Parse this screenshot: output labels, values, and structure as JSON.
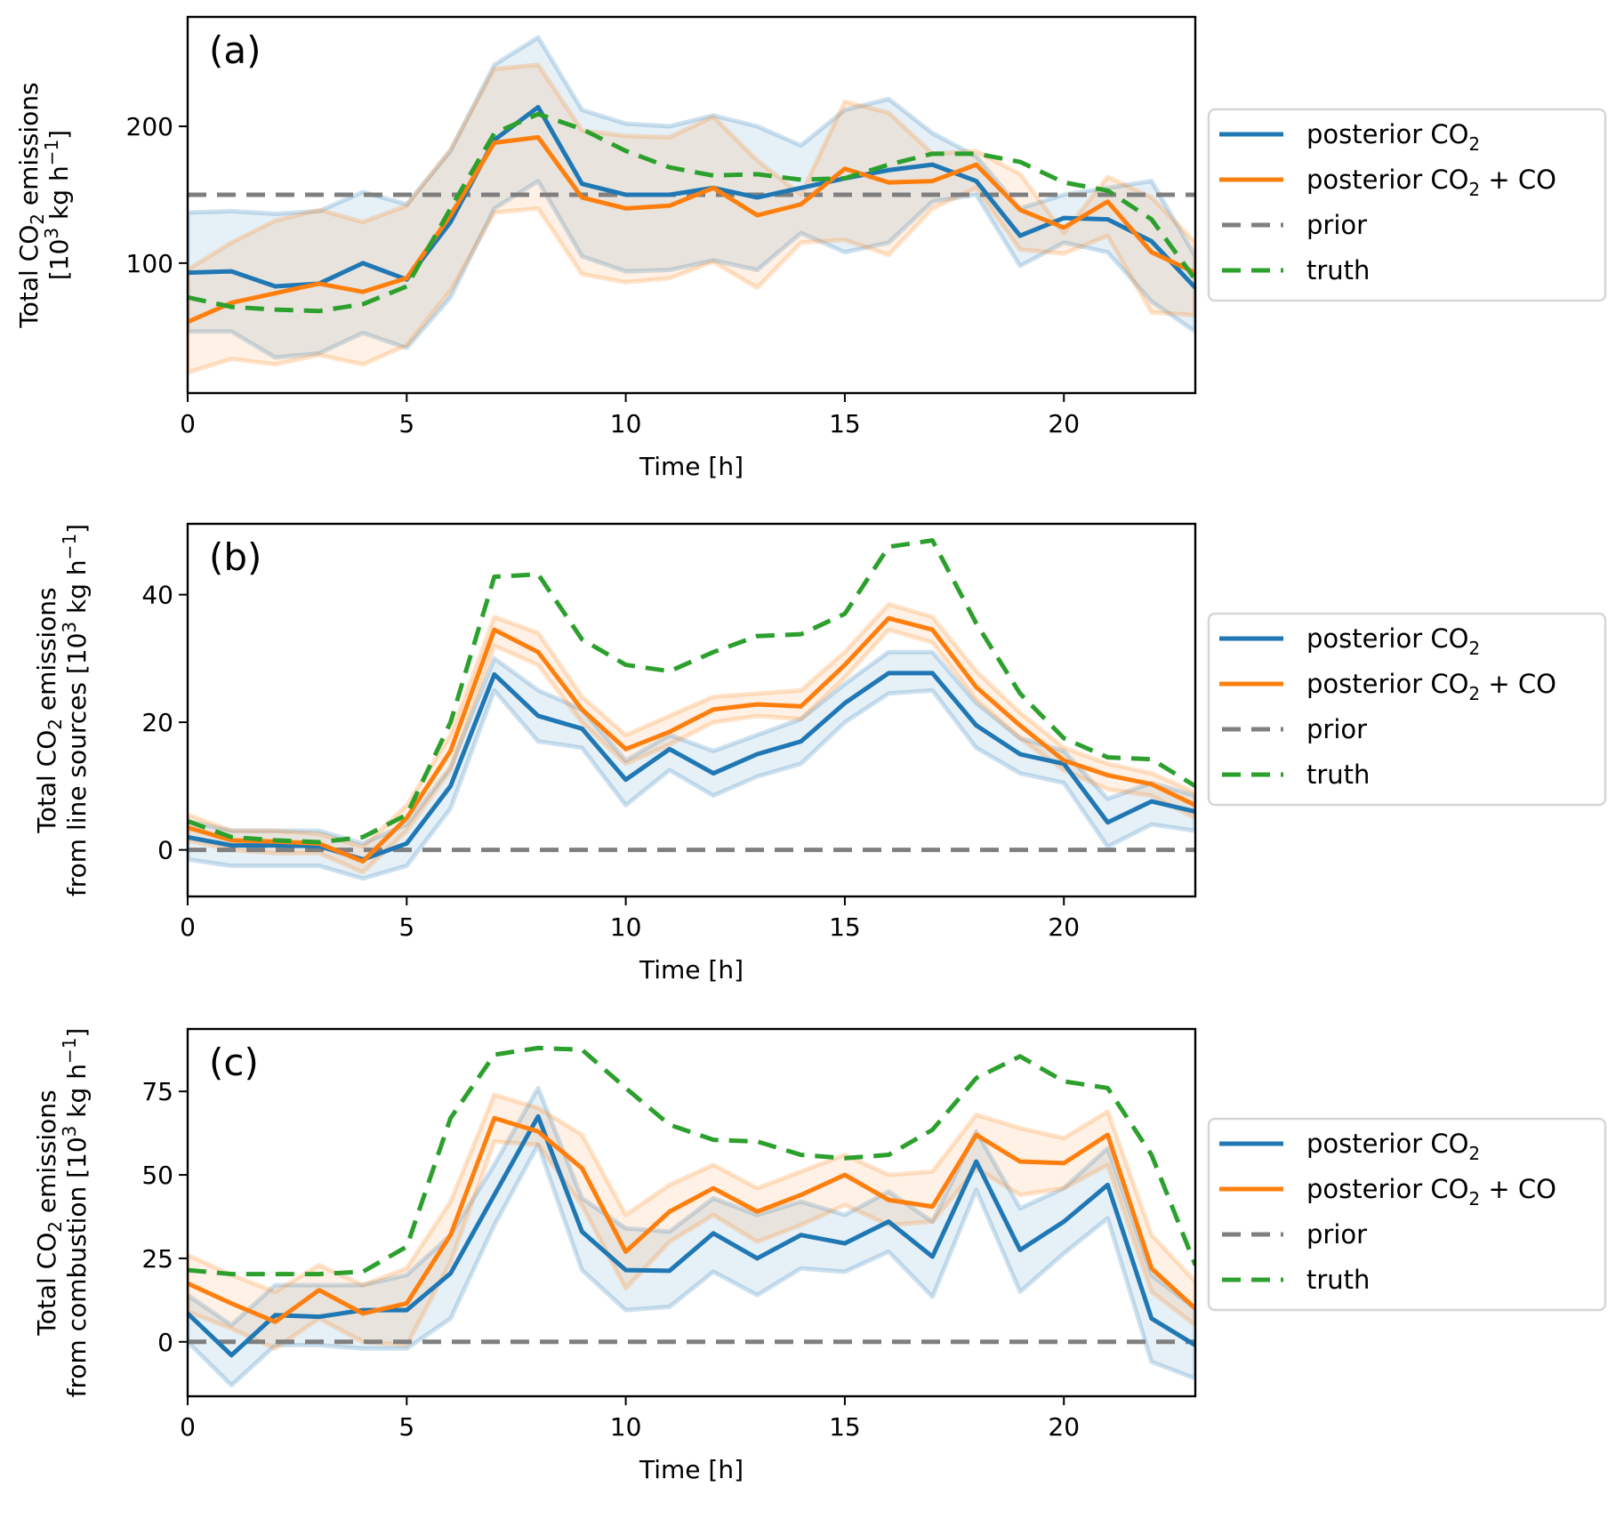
{
  "chart_data": [
    {
      "type": "line",
      "panel_label": "(a)",
      "xlabel": "Time [h]",
      "ylabel_lines": [
        "Total CO|2| emissions",
        "[10^3^ kg h^−1^]"
      ],
      "x": [
        0,
        1,
        2,
        3,
        4,
        5,
        6,
        7,
        8,
        9,
        10,
        11,
        12,
        13,
        14,
        15,
        16,
        17,
        18,
        19,
        20,
        21,
        22,
        23
      ],
      "xlim": [
        0,
        23
      ],
      "ylim": [
        5,
        280
      ],
      "xticks": [
        0,
        5,
        10,
        15,
        20
      ],
      "yticks": [
        100,
        200
      ],
      "legend_position": "right, outside",
      "series": [
        {
          "name": "posterior CO2",
          "label_parts": [
            "posterior CO",
            "2",
            ""
          ],
          "color": "#1f77b4",
          "style": "solid",
          "values": [
            93,
            94,
            83,
            85,
            100,
            88,
            130,
            190,
            214,
            158,
            150,
            150,
            155,
            148,
            155,
            162,
            168,
            172,
            160,
            120,
            133,
            132,
            116,
            82
          ],
          "band_lower": [
            50,
            50,
            31,
            34,
            49,
            38,
            75,
            140,
            160,
            105,
            94,
            95,
            102,
            95,
            122,
            108,
            115,
            145,
            150,
            98,
            115,
            108,
            72,
            50
          ],
          "band_upper": [
            137,
            138,
            136,
            138,
            152,
            143,
            182,
            245,
            265,
            212,
            202,
            200,
            208,
            200,
            186,
            212,
            220,
            195,
            178,
            140,
            150,
            155,
            160,
            105
          ]
        },
        {
          "name": "posterior CO2 + CO",
          "label_parts": [
            "posterior CO",
            "2",
            " + CO"
          ],
          "color": "#ff7f0e",
          "style": "solid",
          "values": [
            57,
            71,
            78,
            85,
            79,
            89,
            135,
            188,
            192,
            148,
            140,
            142,
            155,
            135,
            143,
            169,
            159,
            160,
            172,
            139,
            126,
            145,
            108,
            93
          ],
          "band_lower": [
            20,
            30,
            26,
            33,
            26,
            40,
            80,
            137,
            140,
            92,
            86,
            89,
            101,
            82,
            115,
            117,
            106,
            140,
            155,
            110,
            107,
            120,
            64,
            62
          ],
          "band_upper": [
            95,
            115,
            131,
            139,
            130,
            142,
            183,
            242,
            245,
            197,
            193,
            192,
            207,
            175,
            150,
            218,
            210,
            180,
            182,
            165,
            122,
            163,
            148,
            115
          ]
        },
        {
          "name": "prior",
          "label_parts": [
            "prior",
            "",
            ""
          ],
          "color": "#7f7f7f",
          "style": "dashed",
          "values": [
            150,
            150,
            150,
            150,
            150,
            150,
            150,
            150,
            150,
            150,
            150,
            150,
            150,
            150,
            150,
            150,
            150,
            150,
            150,
            150,
            150,
            150,
            150,
            150
          ]
        },
        {
          "name": "truth",
          "label_parts": [
            "truth",
            "",
            ""
          ],
          "color": "#2ca02c",
          "style": "dashed",
          "values": [
            75,
            68,
            66,
            65,
            70,
            83,
            140,
            195,
            209,
            198,
            182,
            170,
            164,
            165,
            161,
            162,
            172,
            180,
            180,
            174,
            159,
            153,
            132,
            88
          ]
        }
      ]
    },
    {
      "type": "line",
      "panel_label": "(b)",
      "xlabel": "Time [h]",
      "ylabel_lines": [
        "Total CO|2| emissions",
        "from line sources [10^3^ kg h^−1^]"
      ],
      "x": [
        0,
        1,
        2,
        3,
        4,
        5,
        6,
        7,
        8,
        9,
        10,
        11,
        12,
        13,
        14,
        15,
        16,
        17,
        18,
        19,
        20,
        21,
        22,
        23
      ],
      "xlim": [
        0,
        23
      ],
      "ylim": [
        -7.3,
        51.1
      ],
      "xticks": [
        0,
        5,
        10,
        15,
        20
      ],
      "yticks": [
        0,
        20,
        40
      ],
      "legend_position": "right, outside",
      "series": [
        {
          "name": "posterior CO2",
          "label_parts": [
            "posterior CO",
            "2",
            ""
          ],
          "color": "#1f77b4",
          "style": "solid",
          "values": [
            2,
            0.7,
            0.7,
            0.6,
            -1.5,
            1,
            10,
            27.5,
            21,
            19,
            11,
            15.8,
            12,
            15,
            17,
            23,
            27.7,
            27.7,
            19.5,
            15,
            13.5,
            4.3,
            7.6,
            6
          ],
          "band_lower": [
            -1.5,
            -2.5,
            -2.5,
            -2.5,
            -4.5,
            -2.5,
            6.5,
            25,
            17,
            16,
            7,
            12.5,
            8.5,
            11.5,
            13.5,
            20,
            24.5,
            25,
            16,
            12,
            10.5,
            0.5,
            4,
            3
          ],
          "band_upper": [
            4.5,
            3,
            3,
            3,
            1,
            4,
            13,
            30,
            25,
            22,
            14,
            18,
            15.5,
            18,
            20.5,
            26,
            31,
            31,
            23,
            17.5,
            15.5,
            8,
            10.5,
            8.5
          ]
        },
        {
          "name": "posterior CO2 + CO",
          "label_parts": [
            "posterior CO",
            "2",
            " + CO"
          ],
          "color": "#ff7f0e",
          "style": "solid",
          "values": [
            3.5,
            1.5,
            1.3,
            1,
            -1.8,
            5,
            15.5,
            34.5,
            31,
            22,
            15.8,
            18.5,
            22,
            22.8,
            22.5,
            29,
            36.3,
            34.5,
            25.5,
            19.5,
            14,
            11.7,
            10.3,
            7
          ],
          "band_lower": [
            1.5,
            0,
            -0.5,
            -0.5,
            -3.5,
            3,
            12.5,
            32,
            29,
            20,
            13.5,
            16.5,
            20,
            21,
            20.5,
            27,
            34.5,
            32.5,
            23.5,
            17.5,
            12.5,
            9.5,
            8.5,
            5
          ],
          "band_upper": [
            5.5,
            3,
            3,
            2.5,
            0.5,
            7,
            18,
            36.5,
            34,
            24,
            18,
            21,
            24,
            24.5,
            25,
            31,
            38.5,
            36.5,
            28,
            21.5,
            16,
            13.5,
            12,
            9
          ]
        },
        {
          "name": "prior",
          "label_parts": [
            "prior",
            "",
            ""
          ],
          "color": "#7f7f7f",
          "style": "dashed",
          "values": [
            0,
            0,
            0,
            0,
            0,
            0,
            0,
            0,
            0,
            0,
            0,
            0,
            0,
            0,
            0,
            0,
            0,
            0,
            0,
            0,
            0,
            0,
            0,
            0
          ]
        },
        {
          "name": "truth",
          "label_parts": [
            "truth",
            "",
            ""
          ],
          "color": "#2ca02c",
          "style": "dashed",
          "values": [
            4.5,
            2,
            1.5,
            1.2,
            2,
            5.5,
            20,
            42.8,
            43.2,
            33,
            29,
            28,
            31,
            33.5,
            33.8,
            37,
            47.5,
            48.5,
            35.5,
            24.5,
            17.5,
            14.5,
            14.2,
            10
          ]
        }
      ]
    },
    {
      "type": "line",
      "panel_label": "(c)",
      "xlabel": "Time [h]",
      "ylabel_lines": [
        "Total CO|2| emissions",
        "from combustion [10^3^ kg h^−1^]"
      ],
      "x": [
        0,
        1,
        2,
        3,
        4,
        5,
        6,
        7,
        8,
        9,
        10,
        11,
        12,
        13,
        14,
        15,
        16,
        17,
        18,
        19,
        20,
        21,
        22,
        23
      ],
      "xlim": [
        0,
        23
      ],
      "ylim": [
        -16.3,
        93.7
      ],
      "xticks": [
        0,
        5,
        10,
        15,
        20
      ],
      "yticks": [
        0,
        25,
        50,
        75
      ],
      "legend_position": "right, outside",
      "series": [
        {
          "name": "posterior CO2",
          "label_parts": [
            "posterior CO",
            "2",
            ""
          ],
          "color": "#1f77b4",
          "style": "solid",
          "values": [
            8.5,
            -4,
            8,
            7.5,
            9.5,
            9.5,
            20.5,
            44,
            67.5,
            33,
            21.5,
            21.3,
            32.5,
            25,
            32,
            29.5,
            36,
            25.5,
            54,
            27.5,
            36,
            47,
            7,
            -1
          ],
          "band_lower": [
            0,
            -13,
            -1,
            -1,
            -2,
            -2,
            7,
            35,
            59,
            21.5,
            9.5,
            10.5,
            21,
            14,
            22,
            21,
            27,
            13.5,
            45.5,
            15,
            26.5,
            37,
            -6,
            -11
          ],
          "band_upper": [
            14,
            5,
            17,
            17,
            17,
            20,
            32,
            53,
            76,
            43,
            34,
            33,
            43,
            38,
            42,
            38,
            45,
            36,
            63,
            40,
            46,
            58,
            20,
            10
          ]
        },
        {
          "name": "posterior CO2 + CO",
          "label_parts": [
            "posterior CO",
            "2",
            " + CO"
          ],
          "color": "#ff7f0e",
          "style": "solid",
          "values": [
            17.5,
            11.5,
            6,
            15.5,
            8.5,
            11.5,
            32,
            67,
            63,
            52,
            27,
            39,
            46,
            39,
            44,
            50,
            42.5,
            40.5,
            62,
            54,
            53.5,
            62,
            22,
            10
          ],
          "band_lower": [
            9,
            4,
            -2,
            7,
            0,
            -1,
            24,
            60,
            59,
            41,
            16,
            30,
            38,
            30,
            35,
            41,
            35,
            36,
            52,
            44,
            46,
            53,
            15,
            5
          ],
          "band_upper": [
            26,
            20,
            15,
            23,
            17,
            22,
            42,
            74,
            70,
            62,
            38,
            47,
            53,
            46,
            51,
            56,
            50,
            51,
            68,
            64,
            61,
            69,
            32,
            18
          ]
        },
        {
          "name": "prior",
          "label_parts": [
            "prior",
            "",
            ""
          ],
          "color": "#7f7f7f",
          "style": "dashed",
          "values": [
            0,
            0,
            0,
            0,
            0,
            0,
            0,
            0,
            0,
            0,
            0,
            0,
            0,
            0,
            0,
            0,
            0,
            0,
            0,
            0,
            0,
            0,
            0,
            0
          ]
        },
        {
          "name": "truth",
          "label_parts": [
            "truth",
            "",
            ""
          ],
          "color": "#2ca02c",
          "style": "dashed",
          "values": [
            21.5,
            20.3,
            20.3,
            20.3,
            21,
            28.5,
            67,
            86,
            88,
            87.5,
            76,
            65,
            60.5,
            60,
            56,
            55,
            56,
            63.5,
            79,
            85.5,
            78,
            76,
            56,
            23
          ]
        }
      ]
    }
  ]
}
